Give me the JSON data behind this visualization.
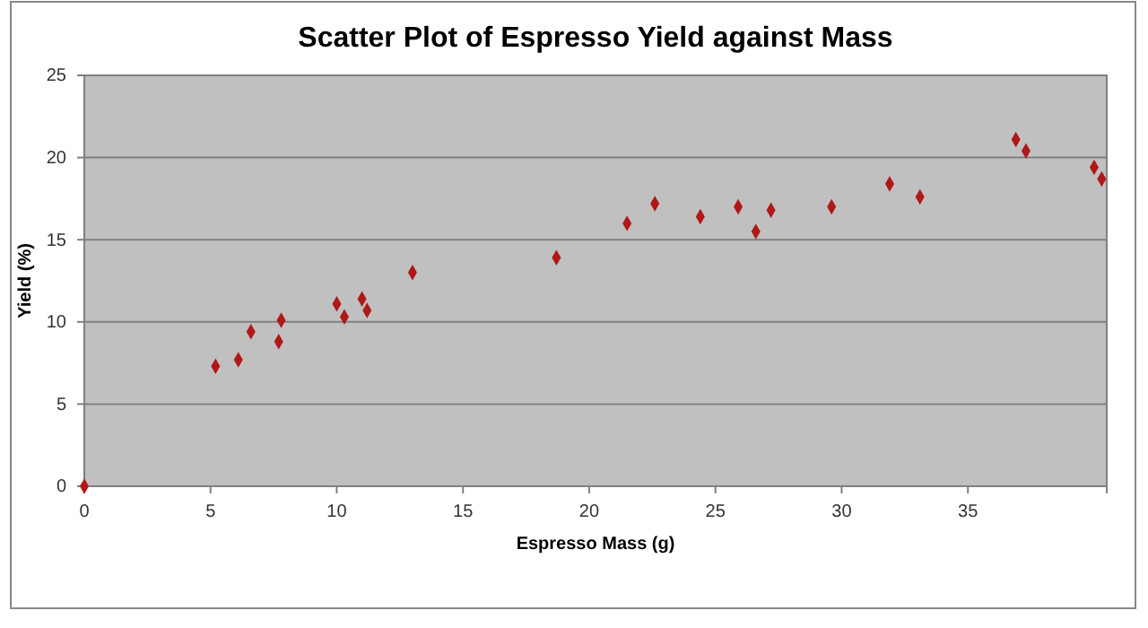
{
  "chart_data": {
    "type": "scatter",
    "title": "Scatter Plot of Espresso Yield against Mass",
    "xlabel": "Espresso Mass (g)",
    "ylabel": "Yield (%)",
    "x": [
      0,
      5.2,
      6.1,
      6.6,
      7.7,
      7.8,
      10.0,
      10.3,
      11.0,
      11.2,
      13.0,
      18.7,
      21.5,
      22.6,
      24.4,
      25.9,
      26.6,
      27.2,
      29.6,
      31.9,
      33.1,
      36.9,
      37.3,
      40.0,
      40.3
    ],
    "values": [
      0,
      7.3,
      7.7,
      9.4,
      8.8,
      10.1,
      11.1,
      10.3,
      11.4,
      10.7,
      13.0,
      13.9,
      16.0,
      17.2,
      16.4,
      17.0,
      15.5,
      16.8,
      17.0,
      18.4,
      17.6,
      21.1,
      20.4,
      19.4,
      18.7
    ],
    "color": "#b01818",
    "marker": "diamond",
    "xlim": [
      0,
      40.5
    ],
    "xticks": [
      0,
      5,
      10,
      15,
      20,
      25,
      30,
      35
    ],
    "ylim": [
      0,
      25
    ],
    "yticks": [
      0,
      5,
      10,
      15,
      20,
      25
    ],
    "grid": "y"
  }
}
